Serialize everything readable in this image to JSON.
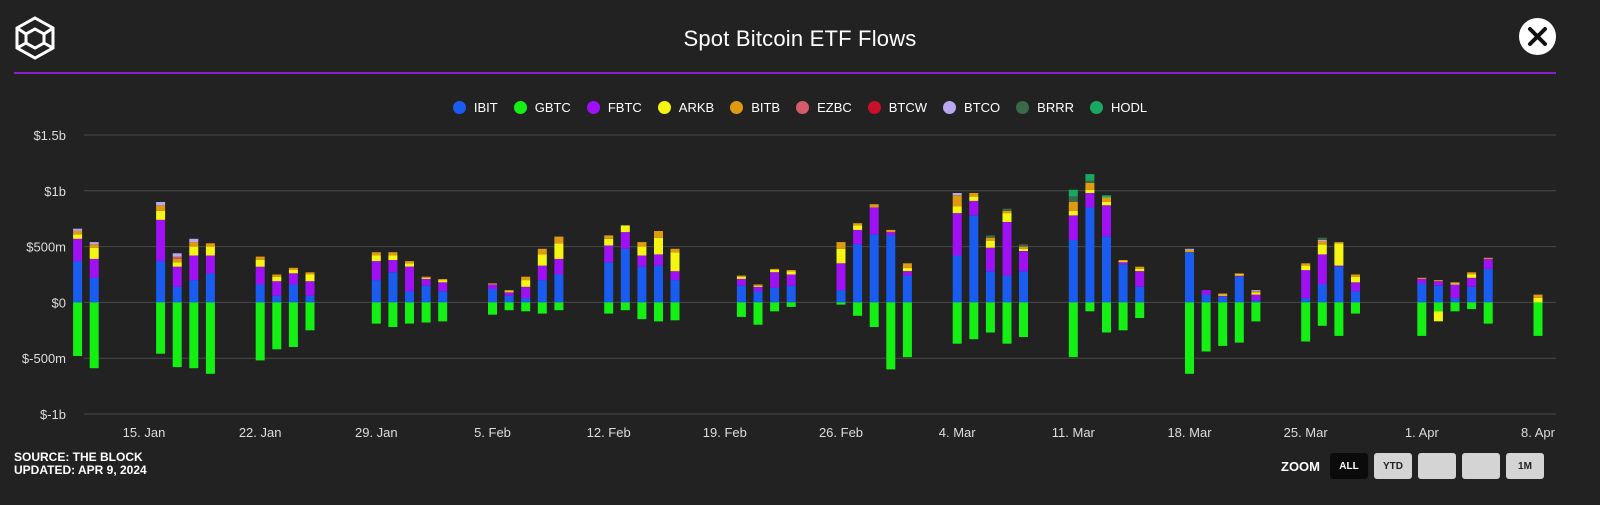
{
  "header": {
    "title": "Spot Bitcoin ETF Flows"
  },
  "footer": {
    "source": "SOURCE: THE BLOCK",
    "updated": "UPDATED: APR 9, 2024",
    "zoom_label": "ZOOM",
    "zoom_buttons": [
      {
        "label": "ALL",
        "active": true
      },
      {
        "label": "YTD",
        "active": false
      },
      {
        "label": "",
        "active": false
      },
      {
        "label": "",
        "active": false
      },
      {
        "label": "1M",
        "active": false
      }
    ]
  },
  "legend": [
    {
      "name": "IBIT",
      "color": "#1a5cf0"
    },
    {
      "name": "GBTC",
      "color": "#14f014"
    },
    {
      "name": "FBTC",
      "color": "#a010f5"
    },
    {
      "name": "ARKB",
      "color": "#f5f514"
    },
    {
      "name": "BITB",
      "color": "#e09a10"
    },
    {
      "name": "EZBC",
      "color": "#d65c6a"
    },
    {
      "name": "BTCW",
      "color": "#c8102a"
    },
    {
      "name": "BTCO",
      "color": "#b8a8f0"
    },
    {
      "name": "BRRR",
      "color": "#3a6b48"
    },
    {
      "name": "HODL",
      "color": "#18a860"
    }
  ],
  "chart_data": {
    "type": "bar",
    "stacked": true,
    "title": "Spot Bitcoin ETF Flows",
    "unit": "USD millions",
    "ylim": [
      -1000,
      1500
    ],
    "y_ticks": [
      -1000,
      -500,
      0,
      500,
      1000,
      1500
    ],
    "y_tick_labels": [
      "$-1b",
      "$-500m",
      "$0",
      "$500m",
      "$1b",
      "$1.5b"
    ],
    "x_ticks": [
      {
        "label": "15. Jan",
        "date": "2024-01-15"
      },
      {
        "label": "22. Jan",
        "date": "2024-01-22"
      },
      {
        "label": "29. Jan",
        "date": "2024-01-29"
      },
      {
        "label": "5. Feb",
        "date": "2024-02-05"
      },
      {
        "label": "12. Feb",
        "date": "2024-02-12"
      },
      {
        "label": "19. Feb",
        "date": "2024-02-19"
      },
      {
        "label": "26. Feb",
        "date": "2024-02-26"
      },
      {
        "label": "4. Mar",
        "date": "2024-03-04"
      },
      {
        "label": "11. Mar",
        "date": "2024-03-11"
      },
      {
        "label": "18. Mar",
        "date": "2024-03-18"
      },
      {
        "label": "25. Mar",
        "date": "2024-03-25"
      },
      {
        "label": "1. Apr",
        "date": "2024-04-01"
      },
      {
        "label": "8. Apr",
        "date": "2024-04-08"
      }
    ],
    "series_order": [
      "IBIT",
      "GBTC",
      "FBTC",
      "ARKB",
      "BITB",
      "EZBC",
      "BTCW",
      "BTCO",
      "BRRR",
      "HODL"
    ],
    "days": [
      {
        "date": "2024-01-11",
        "IBIT": 370,
        "GBTC": -480,
        "FBTC": 200,
        "ARKB": 40,
        "BITB": 30,
        "BTCO": 20
      },
      {
        "date": "2024-01-12",
        "IBIT": 220,
        "GBTC": -590,
        "FBTC": 170,
        "ARKB": 100,
        "BITB": 30,
        "BTCO": 20
      },
      {
        "date": "2024-01-16",
        "IBIT": 370,
        "GBTC": -460,
        "FBTC": 370,
        "ARKB": 80,
        "BITB": 50,
        "BTCO": 30
      },
      {
        "date": "2024-01-17",
        "IBIT": 140,
        "GBTC": -580,
        "FBTC": 180,
        "ARKB": 40,
        "BITB": 30,
        "EZBC": 20,
        "BTCO": 30
      },
      {
        "date": "2024-01-18",
        "IBIT": 200,
        "GBTC": -590,
        "FBTC": 220,
        "ARKB": 80,
        "BITB": 40,
        "BTCO": 30
      },
      {
        "date": "2024-01-19",
        "IBIT": 260,
        "GBTC": -640,
        "FBTC": 160,
        "ARKB": 80,
        "BITB": 30
      },
      {
        "date": "2024-01-22",
        "IBIT": 160,
        "GBTC": -520,
        "FBTC": 160,
        "ARKB": 60,
        "BITB": 30
      },
      {
        "date": "2024-01-23",
        "IBIT": 60,
        "GBTC": -420,
        "FBTC": 130,
        "ARKB": 40,
        "BITB": 20
      },
      {
        "date": "2024-01-24",
        "IBIT": 160,
        "GBTC": -400,
        "FBTC": 100,
        "ARKB": 30,
        "BITB": 20
      },
      {
        "date": "2024-01-25",
        "IBIT": 60,
        "GBTC": -250,
        "FBTC": 130,
        "ARKB": 60,
        "BITB": 20
      },
      {
        "date": "2024-01-29",
        "IBIT": 200,
        "GBTC": -190,
        "FBTC": 170,
        "ARKB": 50,
        "BITB": 30
      },
      {
        "date": "2024-01-30",
        "IBIT": 270,
        "GBTC": -220,
        "FBTC": 110,
        "ARKB": 40,
        "BITB": 30
      },
      {
        "date": "2024-01-31",
        "IBIT": 100,
        "GBTC": -190,
        "FBTC": 220,
        "ARKB": 30,
        "BITB": 20
      },
      {
        "date": "2024-02-01",
        "IBIT": 150,
        "GBTC": -180,
        "FBTC": 60,
        "ARKB": 10,
        "BITB": 10
      },
      {
        "date": "2024-02-02",
        "IBIT": 100,
        "GBTC": -170,
        "FBTC": 80,
        "ARKB": 20,
        "BITB": 10
      },
      {
        "date": "2024-02-05",
        "IBIT": 120,
        "GBTC": -110,
        "FBTC": 40,
        "BITB": 10
      },
      {
        "date": "2024-02-06",
        "IBIT": 60,
        "GBTC": -70,
        "FBTC": 30,
        "ARKB": 10,
        "BITB": 10
      },
      {
        "date": "2024-02-07",
        "IBIT": 40,
        "GBTC": -80,
        "FBTC": 100,
        "ARKB": 60,
        "BITB": 30
      },
      {
        "date": "2024-02-08",
        "IBIT": 200,
        "GBTC": -100,
        "FBTC": 130,
        "ARKB": 100,
        "BITB": 50
      },
      {
        "date": "2024-02-09",
        "IBIT": 250,
        "GBTC": -70,
        "FBTC": 140,
        "ARKB": 140,
        "BITB": 60
      },
      {
        "date": "2024-02-12",
        "IBIT": 360,
        "GBTC": -100,
        "FBTC": 150,
        "ARKB": 60,
        "BITB": 30
      },
      {
        "date": "2024-02-13",
        "IBIT": 480,
        "GBTC": -70,
        "FBTC": 150,
        "ARKB": 60
      },
      {
        "date": "2024-02-14",
        "IBIT": 320,
        "GBTC": -150,
        "FBTC": 100,
        "ARKB": 80,
        "BITB": 40
      },
      {
        "date": "2024-02-15",
        "IBIT": 330,
        "GBTC": -170,
        "FBTC": 100,
        "ARKB": 150,
        "BITB": 60
      },
      {
        "date": "2024-02-16",
        "IBIT": 200,
        "GBTC": -160,
        "FBTC": 80,
        "ARKB": 170,
        "BITB": 30
      },
      {
        "date": "2024-02-20",
        "IBIT": 150,
        "GBTC": -130,
        "FBTC": 60,
        "ARKB": 20,
        "BITB": 10
      },
      {
        "date": "2024-02-21",
        "IBIT": 100,
        "GBTC": -200,
        "FBTC": 40,
        "ARKB": 10,
        "BITB": 10
      },
      {
        "date": "2024-02-22",
        "IBIT": 130,
        "GBTC": -80,
        "FBTC": 140,
        "ARKB": 20,
        "BITB": 10
      },
      {
        "date": "2024-02-23",
        "IBIT": 150,
        "GBTC": -40,
        "FBTC": 100,
        "ARKB": 30,
        "BITB": 10
      },
      {
        "date": "2024-02-26",
        "IBIT": 110,
        "GBTC": -20,
        "FBTC": 240,
        "ARKB": 130,
        "BITB": 60
      },
      {
        "date": "2024-02-27",
        "IBIT": 520,
        "GBTC": -120,
        "FBTC": 130,
        "ARKB": 40,
        "BITB": 20
      },
      {
        "date": "2024-02-28",
        "IBIT": 610,
        "GBTC": -220,
        "FBTC": 240,
        "BITB": 30
      },
      {
        "date": "2024-02-29",
        "IBIT": 600,
        "GBTC": -600,
        "FBTC": 30,
        "BITB": 20
      },
      {
        "date": "2024-03-01",
        "IBIT": 240,
        "GBTC": -490,
        "FBTC": 40,
        "ARKB": 30,
        "BITB": 40
      },
      {
        "date": "2024-03-04",
        "IBIT": 420,
        "GBTC": -370,
        "FBTC": 380,
        "ARKB": 60,
        "BITB": 100,
        "BTCO": 20
      },
      {
        "date": "2024-03-05",
        "IBIT": 780,
        "GBTC": -330,
        "FBTC": 130,
        "ARKB": 40,
        "BITB": 30
      },
      {
        "date": "2024-03-06",
        "IBIT": 280,
        "GBTC": -270,
        "FBTC": 210,
        "ARKB": 60,
        "BITB": 30,
        "BRRR": 20
      },
      {
        "date": "2024-03-07",
        "IBIT": 240,
        "GBTC": -370,
        "FBTC": 480,
        "ARKB": 80,
        "BITB": 20,
        "BRRR": 20
      },
      {
        "date": "2024-03-08",
        "IBIT": 280,
        "GBTC": -310,
        "FBTC": 180,
        "ARKB": 20,
        "BITB": 20,
        "BRRR": 20
      },
      {
        "date": "2024-03-11",
        "IBIT": 560,
        "GBTC": -490,
        "FBTC": 220,
        "ARKB": 40,
        "BITB": 80,
        "BRRR": 50,
        "HODL": 60
      },
      {
        "date": "2024-03-12",
        "IBIT": 850,
        "GBTC": -80,
        "FBTC": 130,
        "ARKB": 30,
        "BITB": 60,
        "BRRR": 20,
        "HODL": 60
      },
      {
        "date": "2024-03-13",
        "IBIT": 590,
        "GBTC": -270,
        "FBTC": 280,
        "ARKB": 30,
        "BITB": 40,
        "HODL": 20
      },
      {
        "date": "2024-03-14",
        "IBIT": 340,
        "GBTC": -250,
        "FBTC": 20,
        "ARKB": 10,
        "BITB": 10
      },
      {
        "date": "2024-03-15",
        "IBIT": 140,
        "GBTC": -140,
        "FBTC": 140,
        "ARKB": 20,
        "BITB": 20
      },
      {
        "date": "2024-03-18",
        "IBIT": 450,
        "GBTC": -640,
        "BITB": 20,
        "BTCO": 10
      },
      {
        "date": "2024-03-19",
        "IBIT": 70,
        "GBTC": -440,
        "FBTC": 40
      },
      {
        "date": "2024-03-20",
        "IBIT": 50,
        "GBTC": -390,
        "FBTC": 10,
        "ARKB": 10,
        "BITB": 10
      },
      {
        "date": "2024-03-21",
        "IBIT": 230,
        "GBTC": -360,
        "FBTC": 10,
        "ARKB": 10,
        "BITB": 10
      },
      {
        "date": "2024-03-22",
        "IBIT": 20,
        "GBTC": -170,
        "FBTC": 50,
        "ARKB": 20,
        "BITB": 10,
        "BTCO": 10
      },
      {
        "date": "2024-03-25",
        "IBIT": 40,
        "GBTC": -350,
        "FBTC": 250,
        "ARKB": 40,
        "BITB": 20
      },
      {
        "date": "2024-03-26",
        "IBIT": 160,
        "GBTC": -210,
        "FBTC": 270,
        "ARKB": 90,
        "BITB": 30,
        "BTCO": 10,
        "BRRR": 20
      },
      {
        "date": "2024-03-27",
        "IBIT": 320,
        "GBTC": -300,
        "FBTC": 10,
        "ARKB": 200,
        "BITB": 10
      },
      {
        "date": "2024-03-28",
        "IBIT": 100,
        "GBTC": -100,
        "FBTC": 80,
        "ARKB": 50,
        "BITB": 20
      },
      {
        "date": "2024-04-01",
        "IBIT": 170,
        "GBTC": -300,
        "FBTC": 40,
        "BITB": 10
      },
      {
        "date": "2024-04-02",
        "IBIT": 150,
        "GBTC": -80,
        "FBTC": 40,
        "ARKB": -90,
        "BITB": 10
      },
      {
        "date": "2024-04-03",
        "IBIT": 40,
        "GBTC": -80,
        "FBTC": 120,
        "ARKB": 10,
        "BITB": 10
      },
      {
        "date": "2024-04-04",
        "IBIT": 140,
        "GBTC": -60,
        "FBTC": 80,
        "ARKB": 30,
        "BITB": 20
      },
      {
        "date": "2024-04-05",
        "IBIT": 300,
        "GBTC": -190,
        "FBTC": 90,
        "BITB": 10
      },
      {
        "date": "2024-04-08",
        "GBTC": -300,
        "ARKB": 40,
        "BITB": 30
      }
    ]
  }
}
